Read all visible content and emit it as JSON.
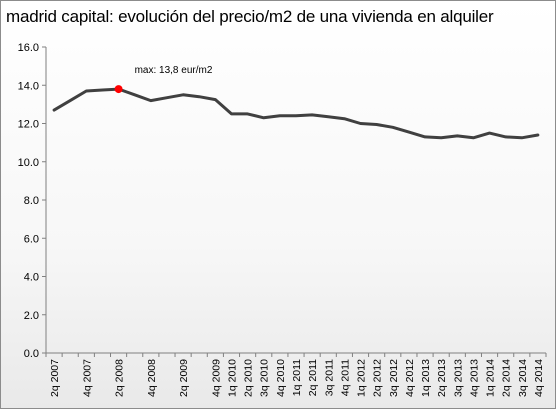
{
  "chart_data": {
    "type": "line",
    "title": "madrid capital: evolución del precio/m2 de una vivienda en alquiler",
    "xlabel": "",
    "ylabel": "",
    "categories": [
      "2q 2007",
      "3q 2007",
      "4q 2007",
      "1q 2008",
      "2q 2008",
      "3q 2008",
      "4q 2008",
      "1q 2009",
      "2q 2009",
      "3q 2009",
      "4q 2009",
      "1q 2010",
      "2q 2010",
      "3q 2010",
      "4q 2010",
      "1q 2011",
      "2q 2011",
      "3q 2011",
      "4q 2011",
      "1q 2012",
      "2q 2012",
      "3q 2012",
      "4q 2012",
      "1q 2013",
      "2q 2013",
      "3q 2013",
      "4q 2013",
      "1q 2014",
      "2q 2014",
      "3q 2014",
      "4q 2014"
    ],
    "x_tick_labels": [
      "2q 2007",
      "4q 2007",
      "2q 2008",
      "4q 2008",
      "2q 2009",
      "4q 2009",
      "1q 2010",
      "2q 2010",
      "3q 2010",
      "4q 2010",
      "1q 2011",
      "2q 2011",
      "3q 2011",
      "4q 2011",
      "1q 2012",
      "2q 2012",
      "3q 2012",
      "4q 2012",
      "1q 2013",
      "2q 2013",
      "3q 2013",
      "4q 2013",
      "1q 2014",
      "2q 2014",
      "3q 2014",
      "4q 2014"
    ],
    "series": [
      {
        "values": [
          12.7,
          13.2,
          13.7,
          13.75,
          13.8,
          13.5,
          13.2,
          13.35,
          13.5,
          13.4,
          13.25,
          12.5,
          12.5,
          12.3,
          12.4,
          12.4,
          12.45,
          12.35,
          12.25,
          12.0,
          11.95,
          11.8,
          11.55,
          11.3,
          11.25,
          11.35,
          11.25,
          11.5,
          11.3,
          11.25,
          11.4
        ],
        "color": "#404040"
      }
    ],
    "ylim": [
      0,
      16
    ],
    "yticks": [
      "0.0",
      "2.0",
      "4.0",
      "6.0",
      "8.0",
      "10.0",
      "12.0",
      "14.0",
      "16.0"
    ],
    "grid": false,
    "legend": "none",
    "annotations": [
      {
        "text": "max: 13,8 eur/m2",
        "category": "2q 2008",
        "value": 13.8,
        "marker_color": "#ff0000"
      }
    ]
  }
}
